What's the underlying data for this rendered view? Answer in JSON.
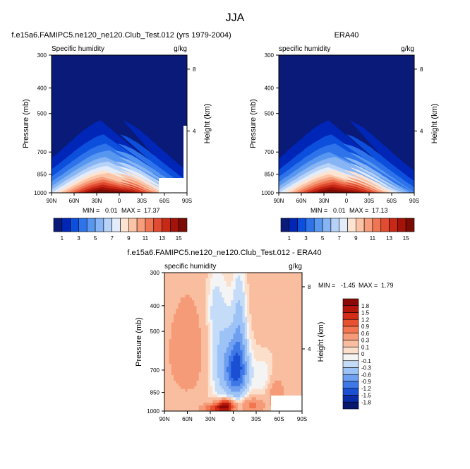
{
  "page": {
    "title": "JJA"
  },
  "chart_data": [
    {
      "type": "heatmap",
      "title": "f.e15a6.FAMIPC5.ne120_ne120.Club_Test.012 (yrs 1979-2004)",
      "left_label": "Specific humidity",
      "right_label": "g/kg",
      "xlabel": "",
      "ylabel": "Pressure (mb)",
      "y2label": "Height (km)",
      "x_ticks": [
        "90N",
        "60N",
        "30N",
        "0",
        "30S",
        "60S",
        "90S"
      ],
      "y_ticks": [
        "300",
        "400",
        "500",
        "700",
        "850",
        "1000"
      ],
      "y_ticks_pressure": [
        300,
        400,
        500,
        700,
        850,
        1000
      ],
      "y2_ticks": [
        "8",
        "4"
      ],
      "y2_ticks_km": [
        8,
        4
      ],
      "min_label": "MIN =",
      "min_value": "0.01",
      "max_label": "MAX =",
      "max_value": "17.37",
      "levels_drawn": [
        1,
        3,
        5,
        7,
        9,
        11,
        13,
        15
      ],
      "colorbar_labels": [
        "1",
        "3",
        "5",
        "7",
        "9",
        "11",
        "13",
        "15"
      ],
      "colorbar_colors": [
        "#0a1a78",
        "#0026b8",
        "#0b4fdc",
        "#2e73ea",
        "#5897f0",
        "#86b4f4",
        "#b7d2f8",
        "#e3ecfb",
        "#fde3d1",
        "#fbc4a6",
        "#f69d7b",
        "#ef7553",
        "#e04b31",
        "#c82915",
        "#a3130a",
        "#7b0c03"
      ],
      "peak_lat": 10,
      "peak_value": 17.37
    },
    {
      "type": "heatmap",
      "title": "ERA40",
      "left_label": "specific humidity",
      "right_label": "g/kg",
      "xlabel": "",
      "ylabel": "Pressure (mb)",
      "y2label": "Height (km)",
      "x_ticks": [
        "90N",
        "60N",
        "30N",
        "0",
        "30S",
        "60S",
        "90S"
      ],
      "y_ticks": [
        "300",
        "400",
        "500",
        "700",
        "850",
        "1000"
      ],
      "y_ticks_pressure": [
        300,
        400,
        500,
        700,
        850,
        1000
      ],
      "y2_ticks": [
        "8",
        "4"
      ],
      "y2_ticks_km": [
        8,
        4
      ],
      "min_label": "MIN =",
      "min_value": "0.01",
      "max_label": "MAX =",
      "max_value": "17.13",
      "levels_drawn": [
        1,
        3,
        5,
        7,
        9,
        11,
        13,
        15
      ],
      "colorbar_labels": [
        "1",
        "3",
        "5",
        "7",
        "9",
        "11",
        "13",
        "15"
      ],
      "colorbar_colors": [
        "#0a1a78",
        "#0026b8",
        "#0b4fdc",
        "#2e73ea",
        "#5897f0",
        "#86b4f4",
        "#b7d2f8",
        "#e3ecfb",
        "#fde3d1",
        "#fbc4a6",
        "#f69d7b",
        "#ef7553",
        "#e04b31",
        "#c82915",
        "#a3130a",
        "#7b0c03"
      ],
      "peak_lat": 10,
      "peak_value": 17.13
    },
    {
      "type": "heatmap",
      "title": "f.e15a6.FAMIPC5.ne120_ne120.Club_Test.012 - ERA40",
      "left_label": "specific humidity",
      "right_label": "g/kg",
      "xlabel": "",
      "ylabel": "Pressure (mb)",
      "y2label": "Height (km)",
      "x_ticks": [
        "90N",
        "60N",
        "30N",
        "0",
        "30S",
        "60S",
        "90S"
      ],
      "y_ticks": [
        "300",
        "400",
        "500",
        "700",
        "850",
        "1000"
      ],
      "y_ticks_pressure": [
        300,
        400,
        500,
        700,
        850,
        1000
      ],
      "y2_ticks": [
        "8",
        "4"
      ],
      "y2_ticks_km": [
        8,
        4
      ],
      "min_label": "MIN =",
      "min_value": "-1.45",
      "max_label": "MAX =",
      "max_value": "1.79",
      "colorbar_labels": [
        "1.8",
        "1.5",
        "1.2",
        "0.9",
        "0.6",
        "0.3",
        "0.1",
        "0",
        "-0.1",
        "-0.3",
        "-0.6",
        "-0.9",
        "-1.2",
        "-1.5",
        "-1.8"
      ],
      "colorbar_colors": [
        "#8b0a05",
        "#b5160b",
        "#d32c17",
        "#e8512f",
        "#f2764f",
        "#f69b78",
        "#f9bd9f",
        "#fbdfcb",
        "#f4f4f4",
        "#c5dcf8",
        "#9dc2f6",
        "#6f9ff0",
        "#3e78e6",
        "#1a4fd3",
        "#0a2ba6",
        "#07186d"
      ]
    }
  ]
}
